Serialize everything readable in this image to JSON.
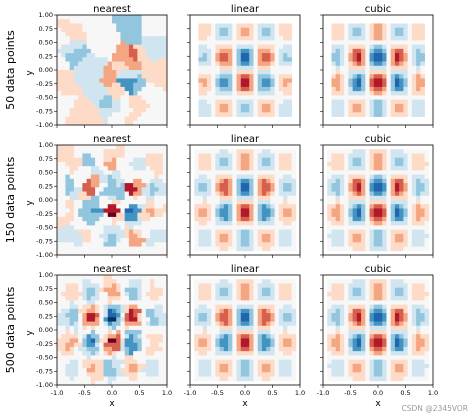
{
  "figure": {
    "watermark": "CSDN @2345VOR"
  },
  "chart_data": {
    "type": "heatmap",
    "methods": [
      "nearest",
      "linear",
      "cubic"
    ],
    "row_labels": [
      "50 data points",
      "150 data points",
      "500 data points"
    ],
    "sample_sizes": [
      50,
      150,
      500
    ],
    "xlabel": "x",
    "ylabel": "y",
    "xlim": [
      -1.0,
      1.0
    ],
    "ylim": [
      -1.0,
      1.0
    ],
    "x_ticks": [
      "-1.0",
      "-0.5",
      "0.0",
      "0.5",
      "1.0"
    ],
    "y_ticks": [
      "1.00",
      "0.75",
      "0.50",
      "0.25",
      "0.00",
      "-0.25",
      "-0.50",
      "-0.75",
      "-1.00"
    ],
    "colormap": "RdBu",
    "colormap_stops": [
      "#67001f",
      "#b2182b",
      "#d6604d",
      "#f4a582",
      "#fddbc7",
      "#f7f7f7",
      "#d1e5f0",
      "#92c5de",
      "#4393c3",
      "#2166ac",
      "#053061"
    ],
    "pattern": "alternating red and blue lobes on a square grid; dark blue centered near (0, 0.25), dark red centered near (0, -0.25)"
  }
}
